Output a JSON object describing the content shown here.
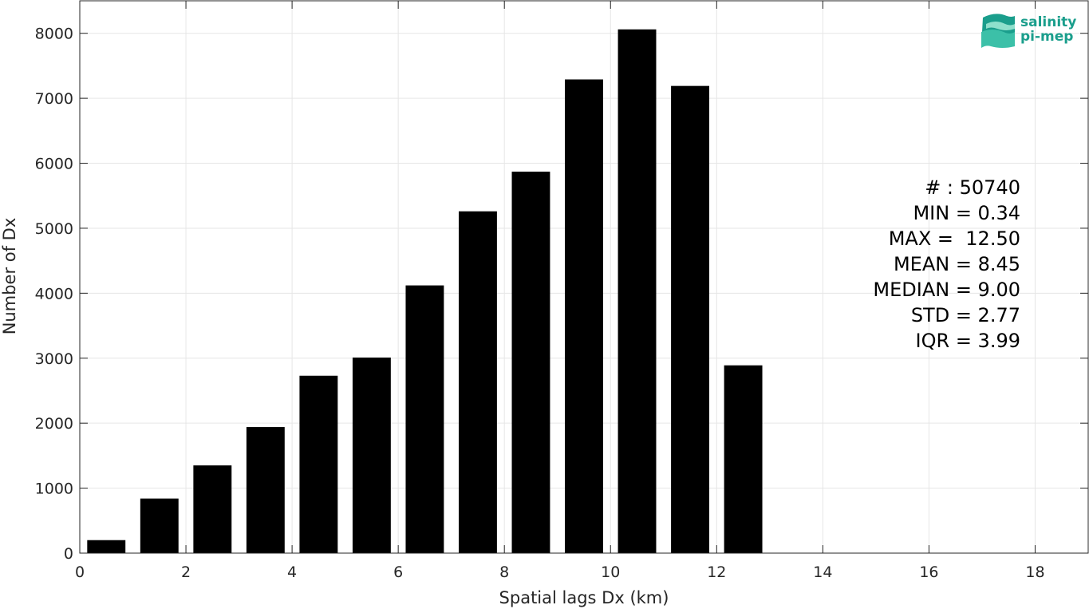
{
  "chart_data": {
    "type": "bar",
    "xlabel": "Spatial lags Dx (km)",
    "ylabel": "Number of Dx",
    "xlim": [
      0,
      19
    ],
    "ylim": [
      0,
      8500
    ],
    "xticks": [
      0,
      2,
      4,
      6,
      8,
      10,
      12,
      14,
      16,
      18
    ],
    "yticks": [
      0,
      1000,
      2000,
      3000,
      4000,
      5000,
      6000,
      7000,
      8000
    ],
    "bin_width": 1,
    "bar_width": 0.72,
    "grid": true,
    "bars": [
      {
        "x": 0.5,
        "value": 200
      },
      {
        "x": 1.5,
        "value": 840
      },
      {
        "x": 2.5,
        "value": 1350
      },
      {
        "x": 3.5,
        "value": 1940
      },
      {
        "x": 4.5,
        "value": 2730
      },
      {
        "x": 5.5,
        "value": 3010
      },
      {
        "x": 6.5,
        "value": 4120
      },
      {
        "x": 7.5,
        "value": 5260
      },
      {
        "x": 8.5,
        "value": 5870
      },
      {
        "x": 9.5,
        "value": 7290
      },
      {
        "x": 10.5,
        "value": 8060
      },
      {
        "x": 11.5,
        "value": 7190
      },
      {
        "x": 12.5,
        "value": 2890
      }
    ],
    "bar_color": "#000000",
    "annotation": [
      "# : 50740",
      "MIN = 0.34",
      "MAX =  12.50",
      "MEAN = 8.45",
      "MEDIAN = 9.00",
      "STD = 2.77",
      "IQR = 3.99"
    ]
  },
  "logo": {
    "line1": "salinity",
    "line2": "pi-mep",
    "color": "#1a9e8c"
  }
}
